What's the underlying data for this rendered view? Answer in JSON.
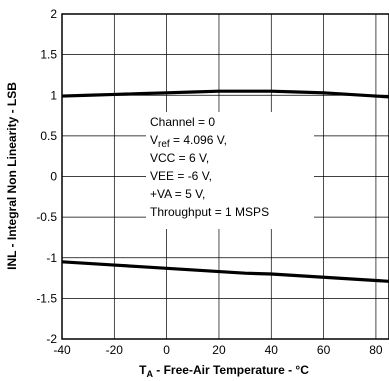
{
  "chart_data": {
    "type": "line",
    "xlabel_main": "T",
    "xlabel_sub": "A",
    "xlabel_rest": " - Free-Air Temperature - °C",
    "ylabel": "INL - Integral Non Linearity - LSB",
    "xlim": [
      -40,
      85
    ],
    "ylim": [
      -2,
      2
    ],
    "x_ticks": [
      -40,
      -20,
      0,
      20,
      40,
      60,
      80
    ],
    "x_tick_labels": [
      "-40",
      "-20",
      "0",
      "20",
      "40",
      "60",
      "80"
    ],
    "y_ticks": [
      -2,
      -1.5,
      -1,
      -0.5,
      0,
      0.5,
      1,
      1.5,
      2
    ],
    "y_tick_labels": [
      "-2",
      "-1.5",
      "-1",
      "-0.5",
      "0",
      "0.5",
      "1",
      "1.5",
      "2"
    ],
    "grid": true,
    "series": [
      {
        "x": [
          -40,
          -30,
          -20,
          -10,
          0,
          10,
          20,
          30,
          40,
          50,
          60,
          70,
          80,
          85
        ],
        "values": [
          0.99,
          1.0,
          1.01,
          1.02,
          1.03,
          1.04,
          1.05,
          1.05,
          1.05,
          1.04,
          1.03,
          1.01,
          0.99,
          0.98
        ]
      },
      {
        "x": [
          -40,
          -30,
          -20,
          -10,
          0,
          10,
          20,
          30,
          40,
          50,
          60,
          70,
          80,
          85
        ],
        "values": [
          -1.05,
          -1.07,
          -1.09,
          -1.11,
          -1.13,
          -1.15,
          -1.17,
          -1.19,
          -1.2,
          -1.22,
          -1.24,
          -1.26,
          -1.28,
          -1.29
        ]
      }
    ],
    "annotation": {
      "line1": "Channel = 0",
      "line2_main": "V",
      "line2_sub": "ref",
      "line2_rest": " = 4.096 V,",
      "line3": "VCC = 6 V,",
      "line4": "VEE = -6 V,",
      "line5": "+VA = 5 V,",
      "line6": "Throughput = 1 MSPS"
    }
  }
}
